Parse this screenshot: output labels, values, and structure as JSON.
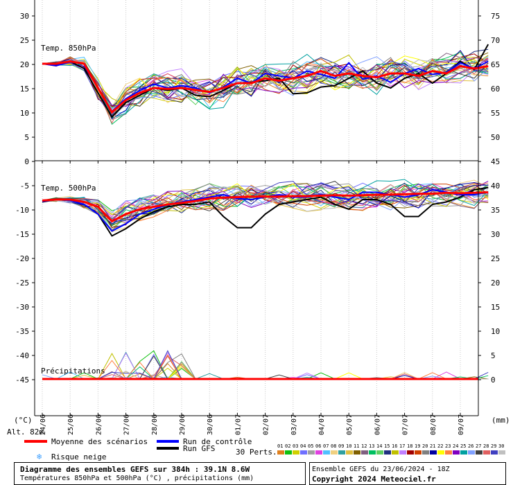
{
  "chart_data": {
    "type": "line",
    "title": "Diagramme des ensembles GEFS sur 384h : 39.1N 8.6W",
    "subtitle": "Températures 850hPa et 500hPa (°C) , précipitations (mm)",
    "run_info": "Ensemble GEFS du 23/06/2024 - 18Z",
    "copyright": "Copyright 2024 Meteociel.fr",
    "altitude": "Alt. 82m",
    "left_unit": "(°C)",
    "right_unit": "(mm)",
    "left_axis_ticks": [
      "30",
      "25",
      "20",
      "15",
      "10",
      "5",
      "0",
      "-5",
      "-10",
      "-15",
      "-20",
      "-25",
      "-30",
      "-35",
      "-40",
      "-45"
    ],
    "right_axis_ticks": [
      "75",
      "70",
      "65",
      "60",
      "55",
      "50",
      "45",
      "40",
      "35",
      "30",
      "25",
      "20",
      "15",
      "10",
      "5",
      "0"
    ],
    "dates": [
      "24/06",
      "25/06",
      "26/06",
      "27/06",
      "28/06",
      "29/06",
      "30/06",
      "01/07",
      "02/07",
      "03/07",
      "04/07",
      "05/07",
      "06/07",
      "07/07",
      "08/07",
      "09/07"
    ],
    "panels": {
      "t850": {
        "label": "Temp. 850hPa",
        "ylim": [
          0,
          30
        ]
      },
      "t500": {
        "label": "Temp. 500hPa",
        "ylim": [
          -45,
          0
        ]
      },
      "precip": {
        "label": "Précipitations",
        "ylim": [
          0,
          10
        ]
      }
    },
    "legend": {
      "mean": "Moyenne des scénarios",
      "control": "Run de contrôle",
      "gfs": "Run GFS",
      "snow": "Risque neige",
      "perts_label": "30 Perts.",
      "pert_numbers": [
        "01",
        "02",
        "03",
        "04",
        "05",
        "06",
        "07",
        "08",
        "09",
        "10",
        "11",
        "12",
        "13",
        "14",
        "15",
        "16",
        "17",
        "18",
        "19",
        "20",
        "21",
        "22",
        "23",
        "24",
        "25",
        "26",
        "27",
        "28",
        "29",
        "30"
      ]
    },
    "colors": {
      "mean": "#ff0000",
      "control": "#0000ff",
      "gfs": "#000000",
      "perts": [
        "#e0801e",
        "#10c010",
        "#d0d000",
        "#7070ff",
        "#a0a0a0",
        "#e040e0",
        "#50c0ff",
        "#f0d080",
        "#30a0a0",
        "#e0c040",
        "#806000",
        "#806080",
        "#00c060",
        "#60d060",
        "#203080",
        "#c0c000",
        "#c080ff",
        "#a00000",
        "#d04000",
        "#808080",
        "#0000a0",
        "#ffff00",
        "#ff8040",
        "#8000c0",
        "#00a0a0",
        "#80a0ff",
        "#404040",
        "#e06060",
        "#4040c0",
        "#c0c0c0"
      ]
    },
    "series": {
      "mean_t850": [
        20,
        20,
        20.5,
        20,
        15,
        10,
        12.5,
        14,
        15,
        14.8,
        15,
        14.6,
        14.2,
        15,
        16,
        16,
        17,
        16.5,
        17,
        17.5,
        18.5,
        17.5,
        18,
        17.5,
        17.2,
        18,
        18,
        17.5,
        18.5,
        18,
        19.5,
        19,
        19.5
      ],
      "control_t850": [
        20,
        19.6,
        20.4,
        20,
        15,
        10.2,
        12.8,
        14.5,
        15.8,
        15,
        15.5,
        15,
        14,
        15.2,
        17,
        16,
        18,
        17.5,
        17,
        18.5,
        17.8,
        17,
        20.2,
        16.8,
        17.5,
        16.2,
        18,
        19,
        17.8,
        18.2,
        20.2,
        19,
        20.5
      ],
      "gfs_t850": [
        20,
        19.8,
        20.5,
        19,
        14,
        9,
        12,
        13.5,
        15,
        14.5,
        15,
        13.5,
        13.2,
        14.5,
        16,
        16.2,
        16.5,
        17,
        13.8,
        14,
        15.2,
        15.5,
        17,
        18.5,
        16,
        15,
        17,
        18,
        16,
        18,
        20.5,
        18.8,
        24
      ],
      "mean_t500": [
        -8.2,
        -8,
        -8,
        -8.5,
        -9.5,
        -12.5,
        -11,
        -10,
        -9.5,
        -9,
        -8.7,
        -8.3,
        -7.8,
        -7.6,
        -7.5,
        -7.4,
        -7.4,
        -7.4,
        -7.3,
        -7.3,
        -7.2,
        -7.1,
        -7.2,
        -7.1,
        -7,
        -7,
        -6.9,
        -6.8,
        -6.8,
        -6.6,
        -6.7,
        -6.6,
        -6.5
      ],
      "control_t500": [
        -8.4,
        -8,
        -8.2,
        -9,
        -11,
        -14.5,
        -13,
        -11,
        -10,
        -9,
        -8.5,
        -8,
        -7.5,
        -7,
        -7.8,
        -8,
        -7.5,
        -7,
        -7.5,
        -7.5,
        -7,
        -7.5,
        -8,
        -6.5,
        -6.5,
        -7,
        -7.5,
        -7,
        -6,
        -6.5,
        -7,
        -7,
        -6.5
      ],
      "gfs_t500": [
        -8.5,
        -8,
        -8.2,
        -9,
        -11,
        -15.5,
        -14,
        -12,
        -10.5,
        -9.5,
        -9,
        -9,
        -8.5,
        -11.5,
        -13.8,
        -13.8,
        -11,
        -9,
        -8.5,
        -8,
        -7.5,
        -9,
        -10,
        -8,
        -8,
        -9,
        -11.5,
        -11.5,
        -9,
        -8.5,
        -7.5,
        -6,
        -5.5
      ]
    }
  }
}
